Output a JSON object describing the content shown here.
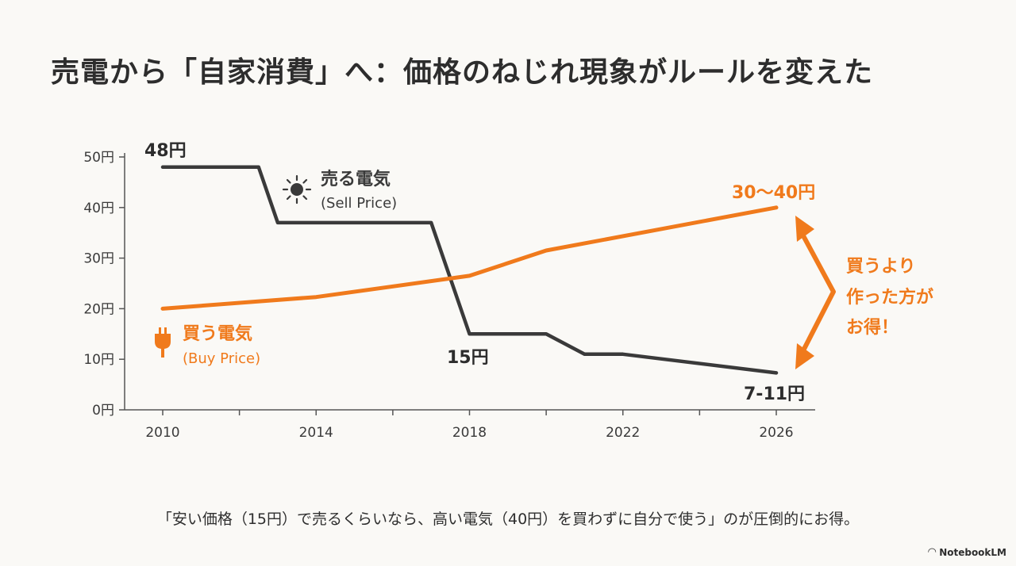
{
  "title": "売電から「自家消費」へ：価格のねじれ現象がルールを変えた",
  "caption": "「安い価格（15円）で売るくらいなら、高い電気（40円）を買わずに自分で使う」のが圧倒的にお得。",
  "brand": "NotebookLM",
  "colors": {
    "sell": "#3a3a3a",
    "buy": "#f07a1c",
    "axis": "#555555"
  },
  "labels": {
    "sell_name": "売る電気",
    "sell_sub": "(Sell Price)",
    "sell_icon": "sun-icon",
    "buy_name": "買う電気",
    "buy_sub": "(Buy Price)",
    "buy_icon": "plug-icon",
    "sell_start": "48円",
    "sell_mid": "15円",
    "sell_end": "7-11円",
    "buy_end": "30〜40円",
    "arrow_line1": "買うより",
    "arrow_line2": "作った方が",
    "arrow_line3": "お得！"
  },
  "chart_data": {
    "type": "line",
    "ylim": [
      0,
      50
    ],
    "xlim": [
      2010,
      2026
    ],
    "xticks": [
      2010,
      2014,
      2018,
      2022,
      2026
    ],
    "xtick_labels": [
      "2010",
      "2014",
      "2018",
      "2022",
      "2026"
    ],
    "yticks": [
      0,
      10,
      20,
      30,
      40,
      50
    ],
    "ytick_labels": [
      "0円",
      "10円",
      "20円",
      "30円",
      "40円",
      "50円"
    ],
    "series": [
      {
        "name": "売る電気",
        "x": [
          2010,
          2012.5,
          2013,
          2017,
          2018,
          2020,
          2021,
          2022,
          2026
        ],
        "y": [
          48,
          48,
          37,
          37,
          15,
          15,
          11,
          11,
          7.3
        ]
      },
      {
        "name": "買う電気",
        "x": [
          2010,
          2014,
          2018,
          2020,
          2026
        ],
        "y": [
          20,
          22.3,
          26.5,
          31.5,
          40
        ]
      }
    ]
  }
}
